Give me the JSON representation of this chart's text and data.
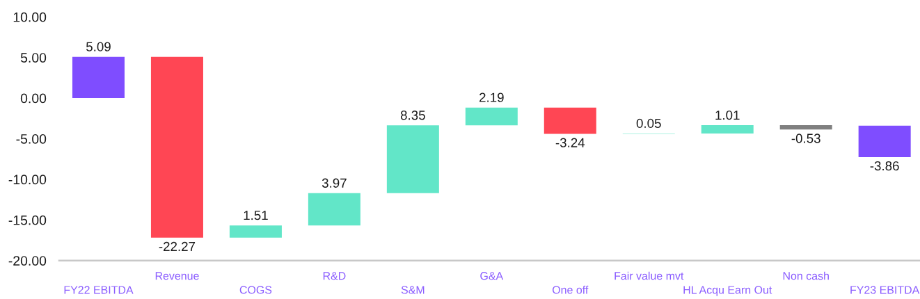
{
  "chart_data": {
    "type": "bar",
    "categories": [
      "FY22 EBITDA",
      "Revenue",
      "COGS",
      "R&D",
      "S&M",
      "G&A",
      "One off",
      "Fair value mvt",
      "HL Acqu Earn Out",
      "Non cash",
      "FY23 EBITDA"
    ],
    "values": [
      5.09,
      -22.27,
      1.51,
      3.97,
      8.35,
      2.19,
      -3.24,
      0.05,
      1.01,
      -0.53,
      -3.86
    ],
    "base": [
      0,
      5.09,
      -17.18,
      -15.67,
      -11.7,
      -3.35,
      -1.16,
      -4.4,
      -4.35,
      -3.34,
      -3.4
    ],
    "colors": [
      "#7f4dff",
      "#ff4654",
      "#62e6c8",
      "#62e6c8",
      "#62e6c8",
      "#62e6c8",
      "#ff4654",
      "#62e6c8",
      "#62e6c8",
      "#808080",
      "#7f4dff"
    ],
    "ylim": [
      -20,
      10
    ],
    "yticks": [
      {
        "value": -20,
        "label": "-20.00"
      },
      {
        "value": -15,
        "label": "-15.00"
      },
      {
        "value": -10,
        "label": "-10.00"
      },
      {
        "value": -5,
        "label": "-5.00"
      },
      {
        "value": 0,
        "label": "0.00"
      },
      {
        "value": 5,
        "label": "5.00"
      },
      {
        "value": 10,
        "label": "10.00"
      }
    ],
    "data_labels": true
  }
}
